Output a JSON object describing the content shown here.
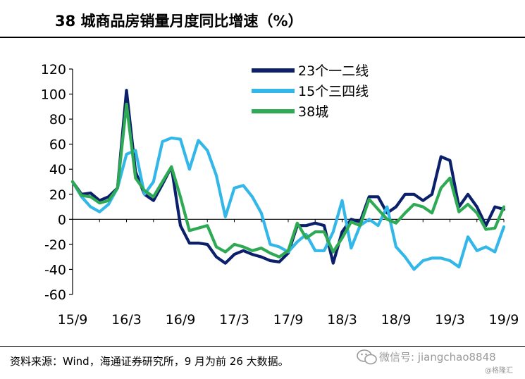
{
  "header": {
    "title": "38 城商品房销量月度同比增速（%）"
  },
  "footer": {
    "source": "资料来源：Wind，海通证券研究所，9 月为前 26 大数据。",
    "watermark": "微信号: jiangchao8848",
    "watermark_sub": "@格隆汇"
  },
  "chart_data": {
    "type": "line",
    "title": "38 城商品房销量月度同比增速（%）",
    "xlabel": "",
    "ylabel": "",
    "x": [
      "15/9",
      "15/10",
      "15/11",
      "15/12",
      "16/1",
      "16/2",
      "16/3",
      "16/4",
      "16/5",
      "16/6",
      "16/7",
      "16/8",
      "16/9",
      "16/10",
      "16/11",
      "16/12",
      "17/1",
      "17/2",
      "17/3",
      "17/4",
      "17/5",
      "17/6",
      "17/7",
      "17/8",
      "17/9",
      "17/10",
      "17/11",
      "17/12",
      "18/1",
      "18/2",
      "18/3",
      "18/4",
      "18/5",
      "18/6",
      "18/7",
      "18/8",
      "18/9",
      "18/10",
      "18/11",
      "18/12",
      "19/1",
      "19/2",
      "19/3",
      "19/4",
      "19/5",
      "19/6",
      "19/7",
      "19/8",
      "19/9"
    ],
    "x_tick_labels": [
      "15/9",
      "16/3",
      "16/9",
      "17/3",
      "17/9",
      "18/3",
      "18/9",
      "19/3",
      "19/9"
    ],
    "ylim": [
      -60,
      120
    ],
    "y_ticks": [
      -60,
      -40,
      -20,
      0,
      20,
      40,
      60,
      80,
      100,
      120
    ],
    "legend_position": "top-right",
    "grid": false,
    "series": [
      {
        "name": "23个一二线",
        "color": "#0b1f6b",
        "values": [
          30,
          20,
          21,
          15,
          18,
          25,
          103,
          38,
          20,
          15,
          28,
          42,
          -5,
          -19,
          -19,
          -20,
          -30,
          -35,
          -28,
          -25,
          -28,
          -30,
          -33,
          -34,
          -27,
          -5,
          -5,
          -3,
          -5,
          -35,
          -10,
          0,
          -2,
          18,
          18,
          5,
          10,
          20,
          20,
          15,
          20,
          50,
          47,
          10,
          20,
          10,
          -5,
          10,
          8
        ]
      },
      {
        "name": "15个三四线",
        "color": "#33b7e8",
        "values": [
          30,
          18,
          10,
          6,
          12,
          25,
          52,
          55,
          20,
          30,
          62,
          65,
          64,
          40,
          63,
          55,
          35,
          2,
          25,
          27,
          18,
          5,
          -20,
          -22,
          -26,
          -18,
          -12,
          -25,
          -25,
          -10,
          15,
          -23,
          -5,
          0,
          -5,
          10,
          -22,
          -30,
          -40,
          -33,
          -31,
          -31,
          -33,
          -38,
          -14,
          -25,
          -22,
          -26,
          -6
        ]
      },
      {
        "name": "38城",
        "color": "#2eaa54",
        "values": [
          30,
          19,
          18,
          13,
          15,
          25,
          92,
          33,
          23,
          18,
          30,
          42,
          18,
          -9,
          -7,
          -5,
          -22,
          -26,
          -20,
          -22,
          -25,
          -23,
          -27,
          -30,
          -25,
          -3,
          -15,
          -10,
          -10,
          -26,
          -15,
          -2,
          -5,
          16,
          8,
          0,
          -3,
          5,
          12,
          10,
          5,
          25,
          33,
          6,
          12,
          5,
          -8,
          -7,
          10
        ]
      }
    ]
  }
}
